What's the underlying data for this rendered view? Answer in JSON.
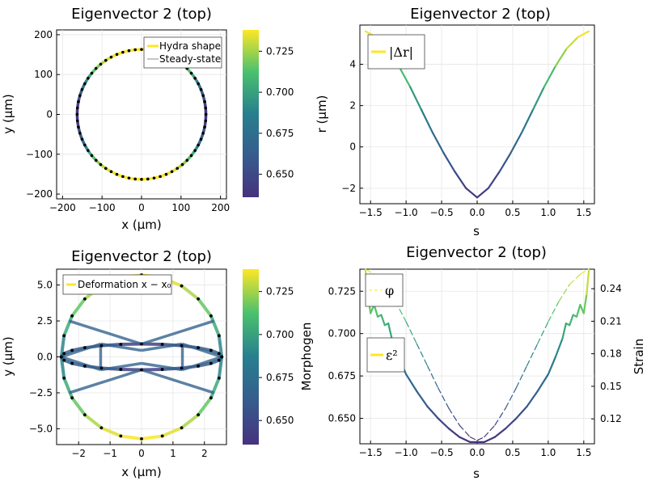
{
  "colorbar_ticks": [
    0.65,
    0.675,
    0.7,
    0.725
  ],
  "colorbar_range": [
    0.636,
    0.738
  ],
  "colors": {
    "min": "#443983",
    "mid": "#21918c",
    "max": "#fde725",
    "steady": "#8c8c8c"
  },
  "chart_data": [
    {
      "type": "line",
      "title": "Eigenvector 2 (top)",
      "xlabel": "x (μm)",
      "ylabel": "y (μm)",
      "xlim": [
        -215,
        215
      ],
      "ylim": [
        -212,
        212
      ],
      "xticks": [
        -200,
        -100,
        0,
        100,
        200
      ],
      "yticks": [
        -200,
        -100,
        0,
        100,
        200
      ],
      "legend": [
        "Hydra shape",
        "Steady-state"
      ],
      "legend_position": "top-right",
      "shape": {
        "type": "circle",
        "radius": 163
      },
      "colorbar_ticks_label": [
        "0.650",
        "0.675",
        "0.700",
        "0.725"
      ]
    },
    {
      "type": "line",
      "title": "Eigenvector 2 (top)",
      "xlabel": "s",
      "ylabel": "r (μm)",
      "xlim": [
        -1.65,
        1.65
      ],
      "ylim": [
        -2.75,
        5.9
      ],
      "xticks": [
        -1.5,
        -1.0,
        -0.5,
        0.0,
        0.5,
        1.0,
        1.5
      ],
      "yticks": [
        -2,
        0,
        2,
        4
      ],
      "legend": [
        "|Δr|"
      ],
      "legend_position": "top-left",
      "x": [
        -1.571,
        -1.414,
        -1.257,
        -1.1,
        -0.942,
        -0.785,
        -0.628,
        -0.471,
        -0.314,
        -0.157,
        0.0,
        0.157,
        0.314,
        0.471,
        0.628,
        0.785,
        0.942,
        1.1,
        1.257,
        1.414,
        1.571
      ],
      "y": [
        5.6,
        5.3,
        4.75,
        3.9,
        2.9,
        1.8,
        0.7,
        -0.3,
        -1.2,
        -2.0,
        -2.45,
        -2.0,
        -1.2,
        -0.3,
        0.7,
        1.8,
        2.9,
        3.9,
        4.75,
        5.3,
        5.6
      ]
    },
    {
      "type": "line",
      "title": "Eigenvector 2 (top)",
      "xlabel": "x (μm)",
      "ylabel": "y (μm)",
      "xlim": [
        -2.7,
        2.7
      ],
      "ylim": [
        -6.1,
        6.1
      ],
      "xticks": [
        -2,
        -1,
        0,
        1,
        2
      ],
      "yticks": [
        -5.0,
        -2.5,
        0.0,
        2.5,
        5.0
      ],
      "ytick_labels": [
        "−5.0",
        "−2.5",
        "0.0",
        "2.5",
        "5.0"
      ],
      "legend": [
        "Deformation x − x₀"
      ],
      "legend_position": "top-left",
      "outer_shape": {
        "rx": 2.55,
        "ry": 5.7
      },
      "inner_shape": {
        "rx": 2.55,
        "ry": 0.9
      }
    },
    {
      "type": "line",
      "title": "Eigenvector 2 (top)",
      "xlabel": "s",
      "ylabel": "Morphogen",
      "ylabel_right": "Strain",
      "xlim": [
        -1.65,
        1.65
      ],
      "ylim": [
        0.635,
        0.738
      ],
      "ylim_right": [
        0.097,
        0.258
      ],
      "xticks": [
        -1.5,
        -1.0,
        -0.5,
        0.0,
        0.5,
        1.0,
        1.5
      ],
      "yticks": [
        0.65,
        0.675,
        0.7,
        0.725
      ],
      "yticks_right": [
        0.12,
        0.15,
        0.18,
        0.21,
        0.24
      ],
      "legend": [
        "φ",
        "ε²"
      ],
      "series": [
        {
          "name": "φ",
          "axis": "left",
          "x": [
            -1.571,
            -1.45,
            -1.3,
            -1.15,
            -1.0,
            -0.85,
            -0.7,
            -0.55,
            -0.4,
            -0.25,
            -0.1,
            0.0,
            0.1,
            0.25,
            0.4,
            0.55,
            0.7,
            0.85,
            1.0,
            1.15,
            1.3,
            1.45,
            1.571
          ],
          "y": [
            0.738,
            0.735,
            0.729,
            0.719,
            0.707,
            0.694,
            0.681,
            0.668,
            0.656,
            0.646,
            0.639,
            0.637,
            0.639,
            0.646,
            0.656,
            0.668,
            0.681,
            0.694,
            0.707,
            0.719,
            0.729,
            0.735,
            0.738
          ],
          "style": "dashed"
        },
        {
          "name": "ε²",
          "axis": "left",
          "x": [
            -1.571,
            -1.54,
            -1.5,
            -1.45,
            -1.4,
            -1.35,
            -1.3,
            -1.25,
            -1.2,
            -1.1,
            -1.0,
            -0.85,
            -0.7,
            -0.55,
            -0.4,
            -0.25,
            -0.1,
            0.0,
            0.1,
            0.25,
            0.4,
            0.55,
            0.7,
            0.85,
            1.0,
            1.1,
            1.2,
            1.25,
            1.3,
            1.35,
            1.4,
            1.45,
            1.5,
            1.54,
            1.571
          ],
          "y": [
            0.737,
            0.723,
            0.712,
            0.717,
            0.71,
            0.711,
            0.705,
            0.706,
            0.697,
            0.686,
            0.676,
            0.666,
            0.657,
            0.65,
            0.644,
            0.639,
            0.636,
            0.636,
            0.636,
            0.639,
            0.644,
            0.65,
            0.657,
            0.666,
            0.676,
            0.686,
            0.697,
            0.706,
            0.705,
            0.711,
            0.71,
            0.717,
            0.712,
            0.723,
            0.737
          ],
          "style": "solid"
        }
      ]
    }
  ]
}
